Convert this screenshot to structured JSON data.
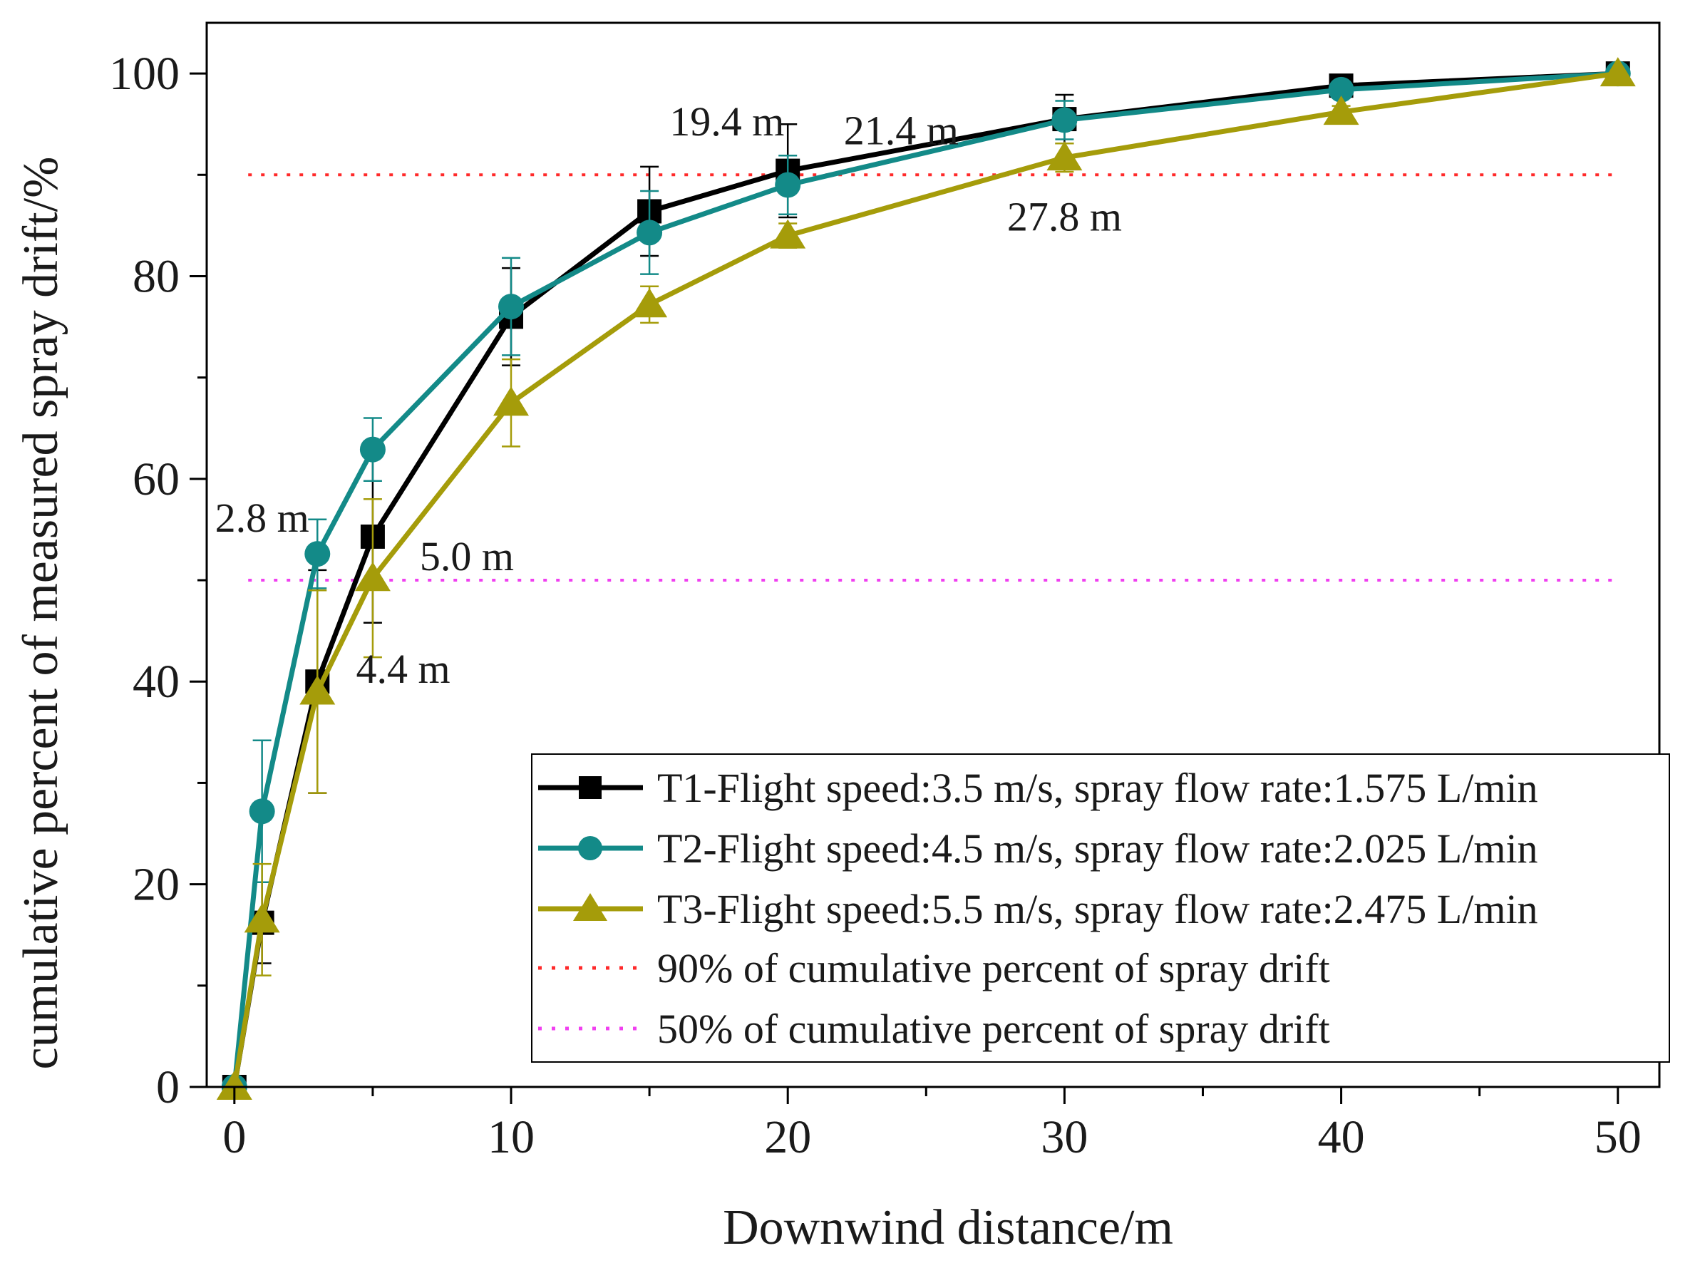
{
  "chart_data": {
    "type": "line",
    "xlabel": "Downwind distance/m",
    "ylabel": "cumulative percent of measured spray drift/%",
    "xlim": [
      -1,
      51.5
    ],
    "ylim": [
      0,
      105
    ],
    "xticks": [
      0,
      10,
      20,
      30,
      40,
      50
    ],
    "yticks": [
      0,
      20,
      40,
      60,
      80,
      100
    ],
    "x_minor_step": 5,
    "y_minor_step": 10,
    "grid": false,
    "legend_position": "bottom-right",
    "x": [
      0,
      1,
      3,
      5,
      10,
      15,
      20,
      30,
      40,
      50
    ],
    "series": [
      {
        "name": "T1-Flight speed:3.5 m/s, spray flow rate:1.575 L/min",
        "color": "#000000",
        "marker": "square",
        "values": [
          0,
          16.2,
          40.0,
          54.3,
          76.0,
          86.4,
          90.4,
          95.5,
          98.8,
          100
        ],
        "errors": [
          0,
          4.0,
          11.0,
          8.5,
          4.8,
          4.4,
          4.6,
          2.4,
          0.6,
          0
        ]
      },
      {
        "name": "T2-Flight speed:4.5 m/s, spray flow rate:2.025 L/min",
        "color": "#138a88",
        "marker": "circle",
        "values": [
          0,
          27.2,
          52.6,
          62.9,
          77.0,
          84.3,
          89.0,
          95.4,
          98.4,
          100
        ],
        "errors": [
          0,
          7.0,
          3.4,
          3.1,
          4.8,
          4.1,
          2.9,
          1.9,
          0.8,
          0
        ]
      },
      {
        "name": "T3-Flight speed:5.5 m/s, spray flow rate:2.475 L/min",
        "color": "#a59c0a",
        "marker": "triangle",
        "values": [
          0,
          16.5,
          39.0,
          50.2,
          67.5,
          77.2,
          84.0,
          91.7,
          96.2,
          100
        ],
        "errors": [
          0,
          5.5,
          10.0,
          7.8,
          4.3,
          1.8,
          1.2,
          1.4,
          0.6,
          0
        ]
      }
    ],
    "reference_lines": [
      {
        "y": 90,
        "color": "#ff2a2a",
        "label": "90% of cumulative percent of spray drift"
      },
      {
        "y": 50,
        "color": "#f040f0",
        "label": "50% of cumulative percent of spray drift"
      }
    ],
    "annotations": [
      {
        "text": "19.4 m",
        "x": 17.8,
        "y": 95.3
      },
      {
        "text": "21.4 m",
        "x": 24.1,
        "y": 94.4
      },
      {
        "text": "27.8 m",
        "x": 30.0,
        "y": 85.9
      },
      {
        "text": "2.8 m",
        "x": 1.0,
        "y": 56.2
      },
      {
        "text": "5.0 m",
        "x": 8.4,
        "y": 52.4
      },
      {
        "text": "4.4 m",
        "x": 6.1,
        "y": 41.3
      }
    ]
  }
}
